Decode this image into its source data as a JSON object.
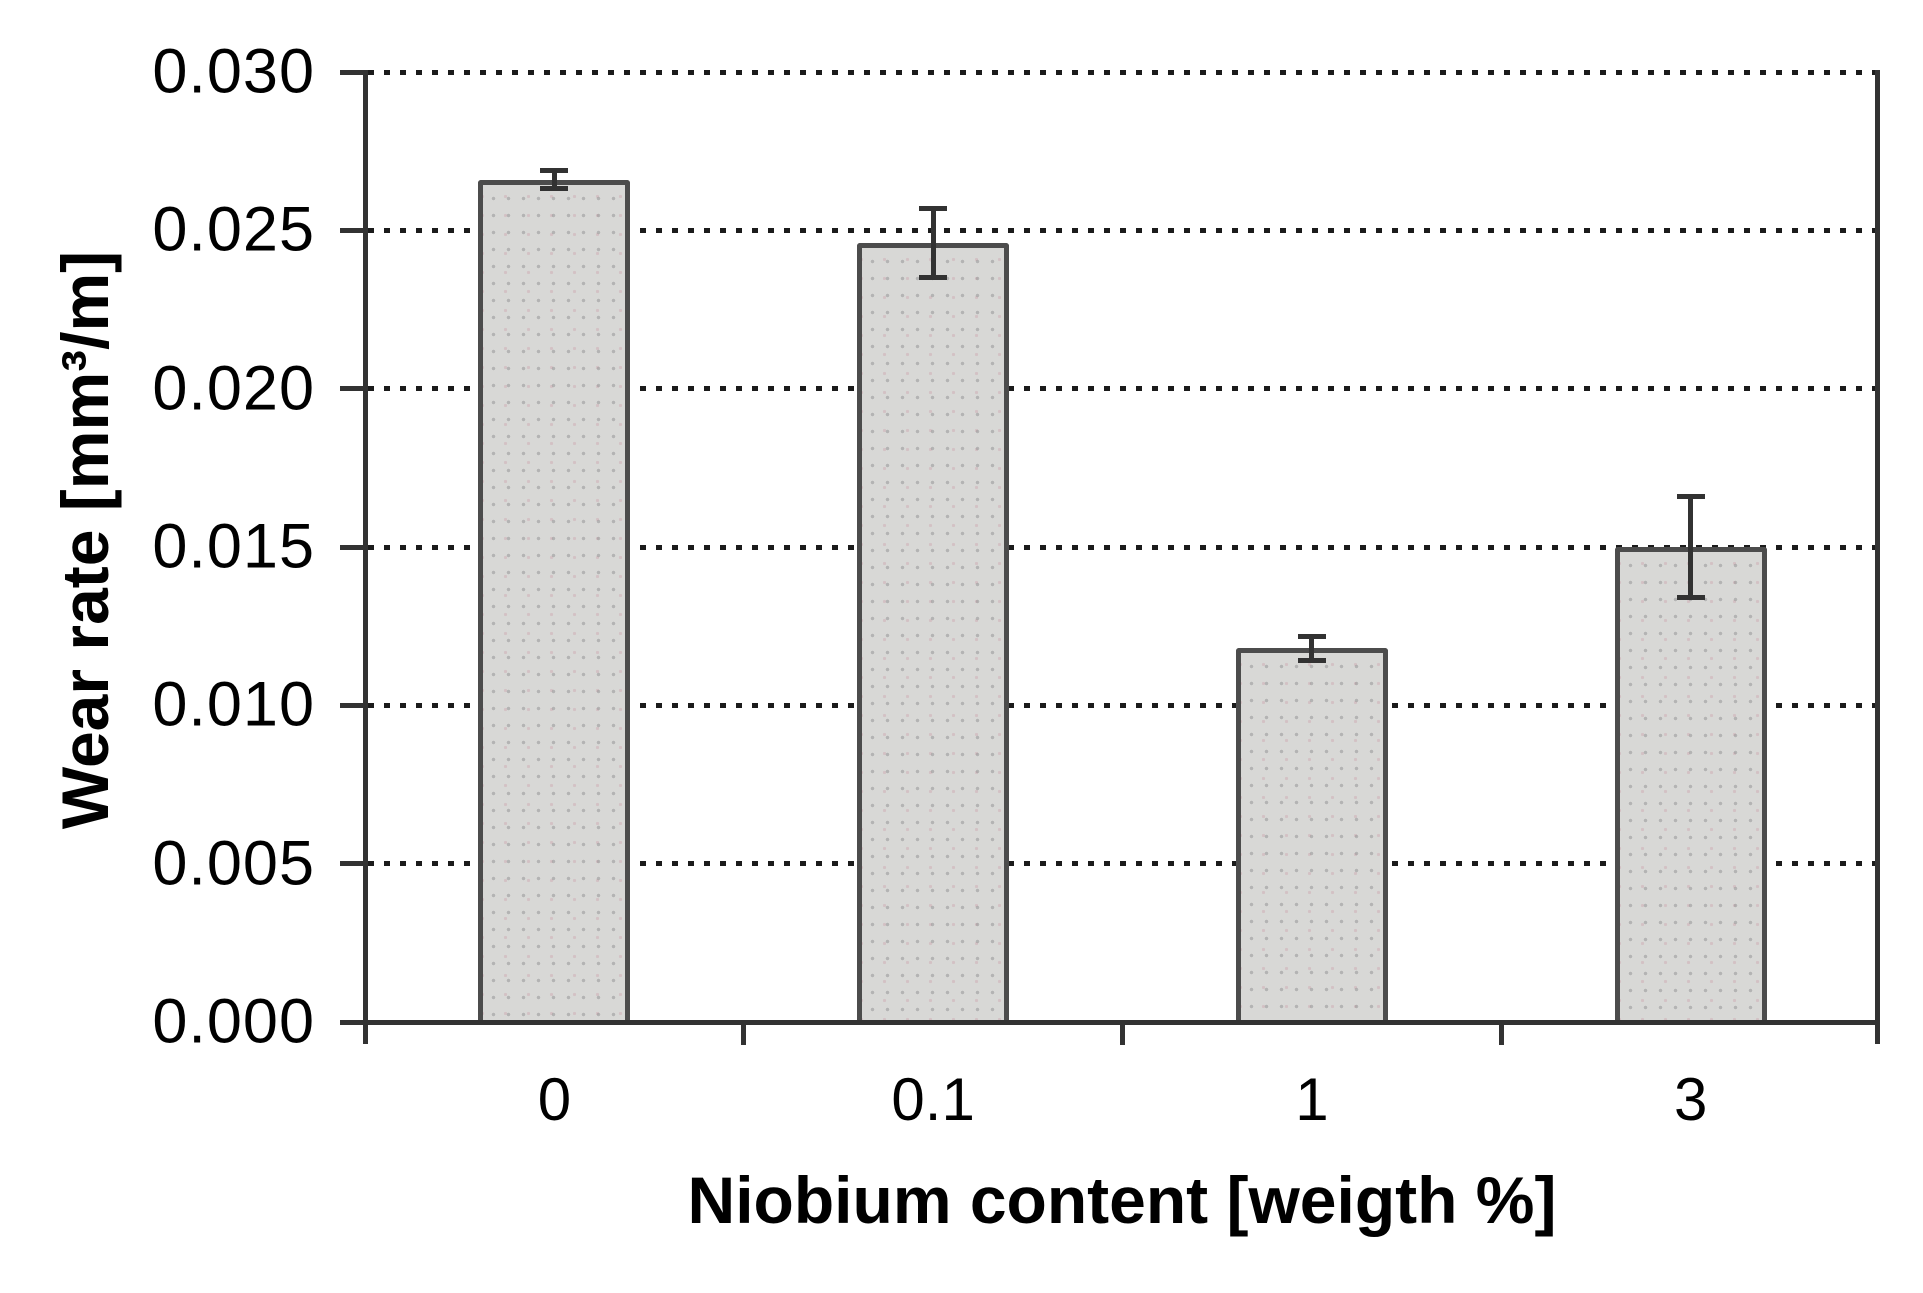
{
  "chart_data": {
    "type": "bar",
    "title": "",
    "categories": [
      "0",
      "0.1",
      "1",
      "3"
    ],
    "values": [
      0.0266,
      0.0246,
      0.0118,
      0.015
    ],
    "errors": [
      0.0003,
      0.0011,
      0.0004,
      0.0016
    ],
    "xlabel": "Niobium content [weigth %]",
    "ylabel": "Wear rate [mm³/m]",
    "ylim": [
      0,
      0.03
    ],
    "yticks": [
      0,
      0.005,
      0.01,
      0.015,
      0.02,
      0.025,
      0.03
    ],
    "ytick_labels": [
      "0.000",
      "0.005",
      "0.010",
      "0.015",
      "0.020",
      "0.025",
      "0.030"
    ],
    "grid": {
      "horizontal": "dotted",
      "vertical": "off"
    },
    "legend": {
      "visible": false
    },
    "error_bars": "symmetric-caps",
    "colors": {
      "bar_fill": "#d8d8d6",
      "bar_border": "#4c4c4c",
      "axis": "#323232",
      "grid_dot": "#1b1b1b",
      "text": "#000000",
      "background": "#ffffff"
    }
  }
}
